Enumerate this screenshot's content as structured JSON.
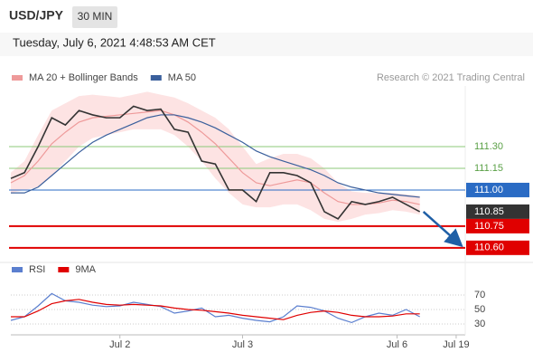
{
  "header": {
    "symbol": "USD/JPY",
    "timeframe": "30 MIN",
    "datetime": "Tuesday, July 6, 2021 4:48:53 AM CET"
  },
  "chart_data": [
    {
      "type": "line",
      "credit": "Research © 2021 Trading Central",
      "x": [
        0,
        3,
        6,
        9,
        12,
        15,
        18,
        21,
        24,
        27,
        30,
        33,
        36,
        39,
        42,
        45,
        48,
        51,
        54,
        57,
        60,
        63,
        66,
        69,
        72,
        75,
        78,
        81,
        84,
        87,
        90
      ],
      "xlim": [
        0,
        100
      ],
      "ylim": [
        110.53,
        111.72
      ],
      "color": "#333333",
      "values": [
        111.08,
        111.12,
        111.3,
        111.5,
        111.45,
        111.55,
        111.52,
        111.5,
        111.5,
        111.58,
        111.55,
        111.56,
        111.42,
        111.4,
        111.2,
        111.18,
        111.0,
        111.0,
        110.92,
        111.12,
        111.12,
        111.1,
        111.05,
        110.85,
        110.8,
        110.92,
        110.9,
        110.92,
        110.95,
        110.9,
        110.85
      ],
      "series": [
        {
          "name": "MA 20 + Bollinger Bands",
          "color": "#ee9a9a",
          "band_color": "#fde3e3",
          "values": [
            111.05,
            111.1,
            111.2,
            111.32,
            111.4,
            111.47,
            111.5,
            111.51,
            111.52,
            111.53,
            111.54,
            111.55,
            111.52,
            111.47,
            111.4,
            111.32,
            111.22,
            111.12,
            111.05,
            111.03,
            111.05,
            111.07,
            111.05,
            110.98,
            110.92,
            110.9,
            110.9,
            110.91,
            110.93,
            110.92,
            110.9
          ],
          "upper": [
            111.12,
            111.2,
            111.38,
            111.55,
            111.6,
            111.65,
            111.66,
            111.65,
            111.64,
            111.66,
            111.68,
            111.66,
            111.64,
            111.6,
            111.55,
            111.5,
            111.42,
            111.3,
            111.18,
            111.22,
            111.25,
            111.25,
            111.22,
            111.15,
            111.05,
            110.99,
            110.98,
            110.98,
            110.98,
            110.97,
            110.96
          ],
          "lower": [
            110.98,
            111.0,
            111.02,
            111.1,
            111.2,
            111.3,
            111.36,
            111.38,
            111.4,
            111.42,
            111.42,
            111.42,
            111.38,
            111.3,
            111.2,
            111.08,
            110.98,
            110.9,
            110.88,
            110.88,
            110.9,
            110.9,
            110.86,
            110.8,
            110.78,
            110.8,
            110.83,
            110.84,
            110.86,
            110.85,
            110.83
          ]
        },
        {
          "name": "MA 50",
          "color": "#3a5f9c",
          "values": [
            110.98,
            110.98,
            111.02,
            111.1,
            111.18,
            111.26,
            111.33,
            111.38,
            111.42,
            111.46,
            111.5,
            111.52,
            111.52,
            111.5,
            111.47,
            111.43,
            111.38,
            111.33,
            111.27,
            111.23,
            111.2,
            111.17,
            111.14,
            111.1,
            111.05,
            111.02,
            111.0,
            110.98,
            110.97,
            110.96,
            110.95
          ]
        }
      ],
      "levels": [
        {
          "value": 111.3,
          "label": "111.30",
          "color": "#8cc97a",
          "boxed": false
        },
        {
          "value": 111.15,
          "label": "111.15",
          "color": "#8cc97a",
          "boxed": false
        },
        {
          "value": 111.0,
          "label": "111.00",
          "color": "#2a6bc4",
          "boxed": true
        },
        {
          "value": 110.85,
          "label": "110.85",
          "color": "#333333",
          "boxed": true,
          "line": false
        },
        {
          "value": 110.75,
          "label": "110.75",
          "color": "#e00000",
          "boxed": true
        },
        {
          "value": 110.6,
          "label": "110.60",
          "color": "#e00000",
          "boxed": true
        }
      ]
    },
    {
      "type": "line",
      "x": [
        0,
        3,
        6,
        9,
        12,
        15,
        18,
        21,
        24,
        27,
        30,
        33,
        36,
        39,
        42,
        45,
        48,
        51,
        54,
        57,
        60,
        63,
        66,
        69,
        72,
        75,
        78,
        81,
        84,
        87,
        90
      ],
      "xlim": [
        0,
        100
      ],
      "ylim": [
        17.5,
        90
      ],
      "yticks": [
        30,
        50,
        70
      ],
      "grid": true,
      "xticks": [
        {
          "value": 24,
          "label": "Jul 2"
        },
        {
          "value": 51,
          "label": "Jul 3"
        },
        {
          "value": 85,
          "label": "Jul 6"
        },
        {
          "value": 98,
          "label": "Jul 19"
        }
      ],
      "series": [
        {
          "name": "RSI",
          "color": "#5b7fcf",
          "values": [
            35,
            40,
            55,
            72,
            62,
            60,
            56,
            54,
            55,
            60,
            57,
            54,
            45,
            48,
            52,
            40,
            42,
            38,
            35,
            33,
            40,
            55,
            53,
            48,
            38,
            32,
            40,
            45,
            42,
            50,
            40
          ]
        },
        {
          "name": "9MA",
          "color": "#e00000",
          "values": [
            40,
            40,
            48,
            58,
            62,
            64,
            60,
            57,
            56,
            57,
            56,
            55,
            52,
            50,
            49,
            47,
            45,
            42,
            40,
            38,
            36,
            42,
            46,
            48,
            46,
            42,
            40,
            40,
            41,
            44,
            44
          ]
        }
      ]
    }
  ]
}
